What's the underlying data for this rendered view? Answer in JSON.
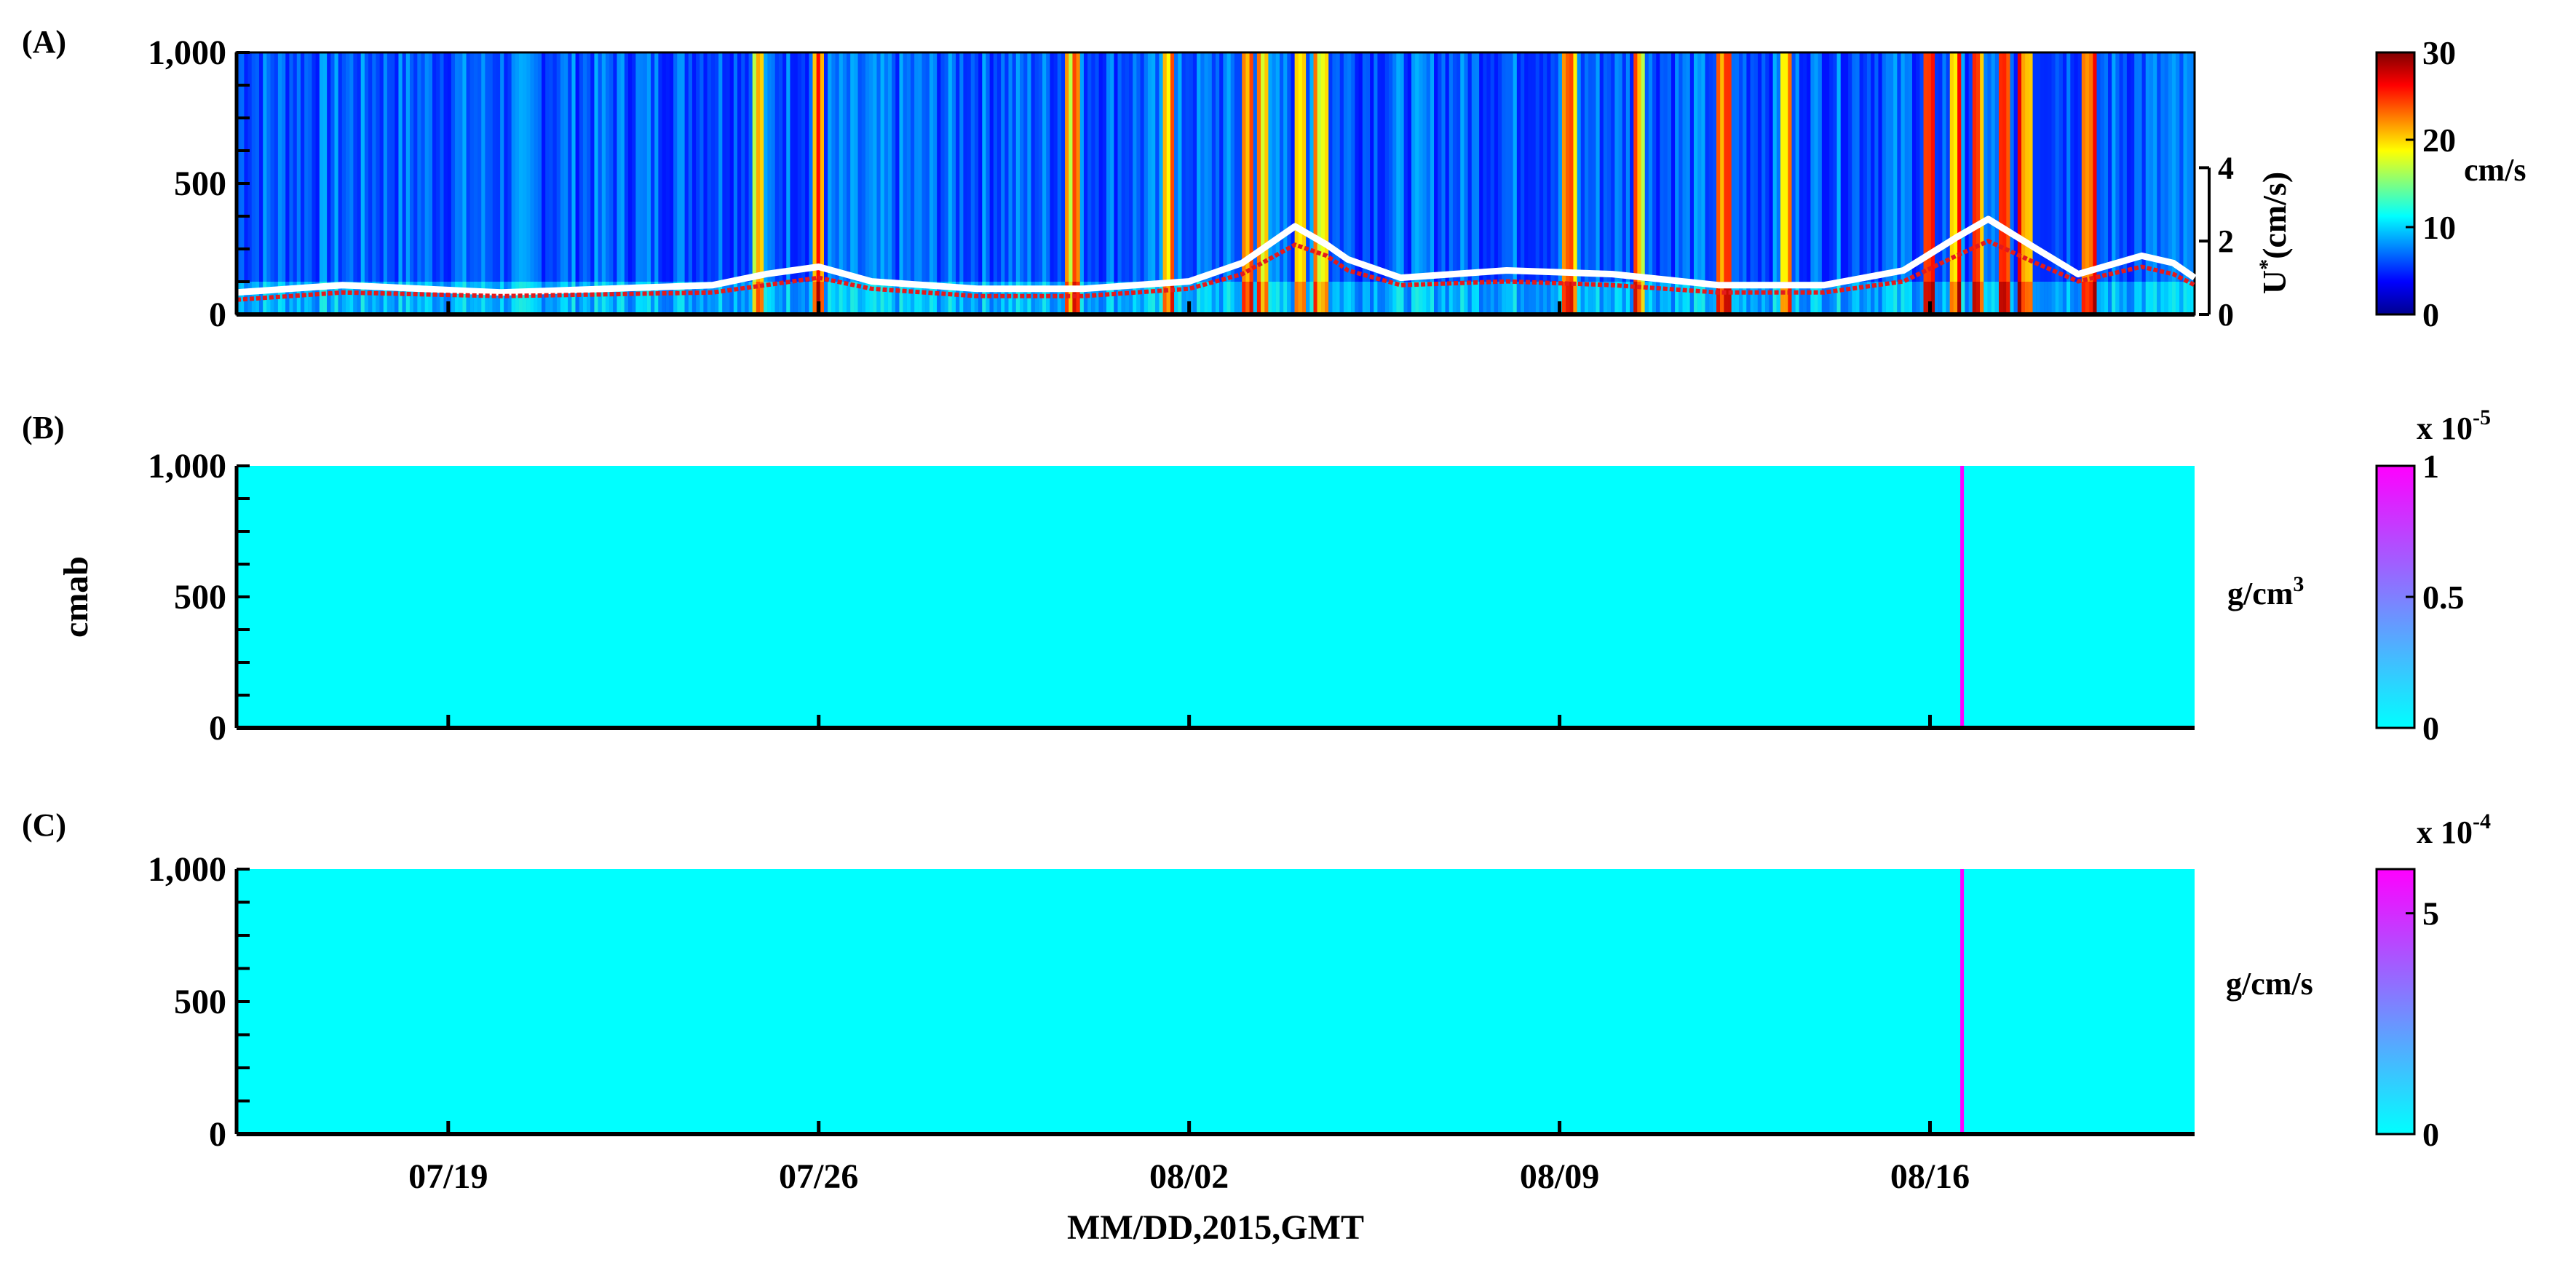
{
  "figure": {
    "xlabel": "MM/DD,2015,GMT",
    "x_ticks": [
      "07/19",
      "07/26",
      "08/02",
      "08/09",
      "08/16"
    ],
    "x_tick_days": [
      4,
      11,
      18,
      25,
      32
    ],
    "x_range_days": [
      0,
      37
    ]
  },
  "chart_data": [
    {
      "type": "heatmap",
      "panel_label": "(A)",
      "ylabel": "",
      "y_ticks": [
        "0",
        "500",
        "1,000"
      ],
      "ylim": [
        0,
        1000
      ],
      "colorbar": {
        "unit": "cm/s",
        "ticks": [
          "0",
          "10",
          "20",
          "30"
        ],
        "range": [
          0,
          30
        ],
        "colormap": "jet"
      },
      "overlay": {
        "ylabel": "U*(cm/s)",
        "ylabel_main": "U",
        "ylabel_sup": "*",
        "ylabel_rest": "(cm/s)",
        "ticks": [
          "0",
          "2",
          "4"
        ],
        "ylim": [
          0,
          4
        ],
        "series": [
          {
            "color": "#ffffff",
            "points": [
              [
                0,
                0.6
              ],
              [
                2,
                0.8
              ],
              [
                5,
                0.6
              ],
              [
                9,
                0.8
              ],
              [
                10,
                1.1
              ],
              [
                11,
                1.3
              ],
              [
                12,
                0.9
              ],
              [
                14,
                0.7
              ],
              [
                16,
                0.7
              ],
              [
                18,
                0.9
              ],
              [
                19,
                1.4
              ],
              [
                20,
                2.4
              ],
              [
                20.6,
                1.9
              ],
              [
                21,
                1.5
              ],
              [
                22,
                1.0
              ],
              [
                24,
                1.2
              ],
              [
                26,
                1.1
              ],
              [
                28,
                0.8
              ],
              [
                30,
                0.8
              ],
              [
                31.5,
                1.2
              ],
              [
                32.5,
                2.1
              ],
              [
                33.1,
                2.6
              ],
              [
                34,
                1.8
              ],
              [
                34.8,
                1.1
              ],
              [
                36,
                1.6
              ],
              [
                36.6,
                1.4
              ],
              [
                37,
                1.0
              ]
            ]
          },
          {
            "color": "#e41a1c",
            "points": [
              [
                0,
                0.4
              ],
              [
                2,
                0.6
              ],
              [
                5,
                0.5
              ],
              [
                9,
                0.6
              ],
              [
                10,
                0.8
              ],
              [
                11,
                1.0
              ],
              [
                12,
                0.7
              ],
              [
                14,
                0.5
              ],
              [
                16,
                0.5
              ],
              [
                18,
                0.7
              ],
              [
                19,
                1.1
              ],
              [
                20,
                1.9
              ],
              [
                20.6,
                1.6
              ],
              [
                21,
                1.2
              ],
              [
                22,
                0.8
              ],
              [
                24,
                0.9
              ],
              [
                26,
                0.8
              ],
              [
                28,
                0.6
              ],
              [
                30,
                0.6
              ],
              [
                31.5,
                0.9
              ],
              [
                32.5,
                1.6
              ],
              [
                33.1,
                2.0
              ],
              [
                34,
                1.4
              ],
              [
                34.8,
                0.9
              ],
              [
                36,
                1.3
              ],
              [
                36.6,
                1.1
              ],
              [
                37,
                0.8
              ]
            ]
          }
        ]
      },
      "bright_streaks_days": [
        9.85,
        11.0,
        15.8,
        17.6,
        19.1,
        19.4,
        20.1,
        20.5,
        25.2,
        26.5,
        28.1,
        29.3,
        32.0,
        32.5,
        32.9,
        33.4,
        33.8,
        35.0
      ]
    },
    {
      "type": "heatmap",
      "panel_label": "(B)",
      "ylabel": "cmab",
      "y_ticks": [
        "0",
        "500",
        "1,000"
      ],
      "ylim": [
        0,
        1000
      ],
      "colorbar": {
        "unit_main": "g/cm",
        "unit_sup": "3",
        "ticks": [
          "0",
          "0.5",
          "1"
        ],
        "range": [
          0,
          1
        ],
        "exponent_prefix": "x 10",
        "exponent": "-5",
        "colormap": "cool"
      },
      "spike_day": 32.6,
      "background_color": "#00ffff",
      "spike_color": "#ff00ff"
    },
    {
      "type": "heatmap",
      "panel_label": "(C)",
      "ylabel": "",
      "y_ticks": [
        "0",
        "500",
        "1,000"
      ],
      "ylim": [
        0,
        1000
      ],
      "colorbar": {
        "unit": "g/cm/s",
        "ticks": [
          "0",
          "5"
        ],
        "range": [
          0,
          6
        ],
        "exponent_prefix": "x 10",
        "exponent": "-4",
        "colormap": "cool"
      },
      "spike_day": 32.6,
      "background_color": "#00ffff",
      "spike_color": "#ff00ff"
    }
  ]
}
